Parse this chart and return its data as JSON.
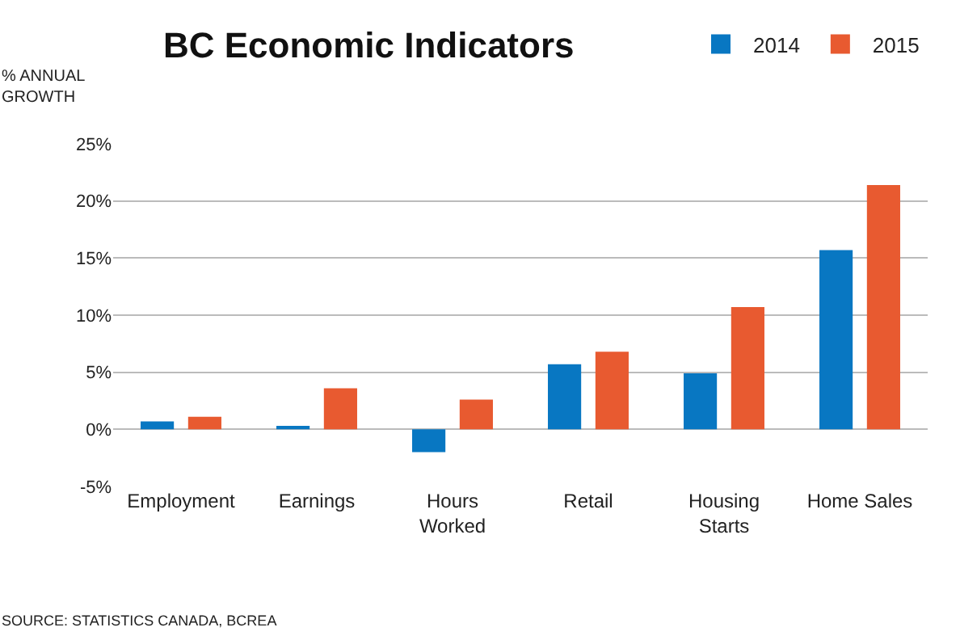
{
  "chart_data": {
    "type": "bar",
    "title": "BC Economic Indicators",
    "ylabel": "% ANNUAL\nGROWTH",
    "categories": [
      "Employment",
      "Earnings",
      "Hours\nWorked",
      "Retail",
      "Housing\nStarts",
      "Home Sales"
    ],
    "series": [
      {
        "name": "2014",
        "color": "#0877c2",
        "values": [
          0.7,
          0.3,
          -2.0,
          5.7,
          4.9,
          15.7
        ]
      },
      {
        "name": "2015",
        "color": "#e85a30",
        "values": [
          1.1,
          3.6,
          2.6,
          6.8,
          10.7,
          21.4
        ]
      }
    ],
    "ylim": [
      -5,
      25
    ],
    "yticks": [
      {
        "value": -5,
        "label": "-5%"
      },
      {
        "value": 0,
        "label": "0%"
      },
      {
        "value": 5,
        "label": "5%"
      },
      {
        "value": 10,
        "label": "10%"
      },
      {
        "value": 15,
        "label": "15%"
      },
      {
        "value": 20,
        "label": "20%"
      },
      {
        "value": 25,
        "label": "25%"
      }
    ],
    "grid": "y",
    "legend": "top right",
    "annotations": [
      "SOURCE: STATISTICS CANADA, BCREA"
    ]
  }
}
